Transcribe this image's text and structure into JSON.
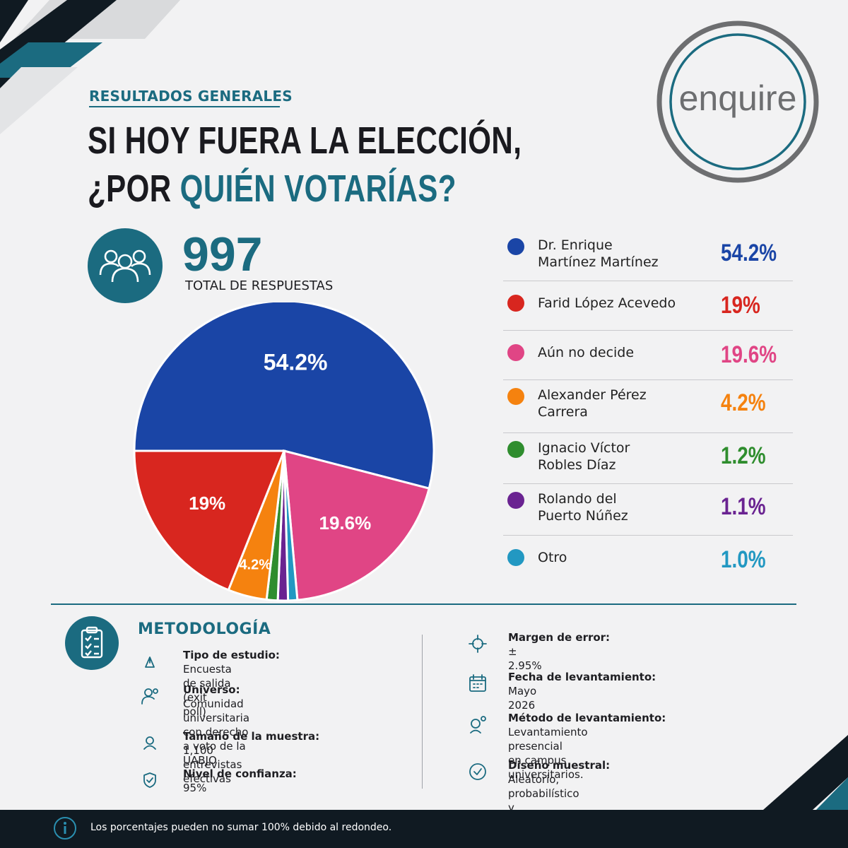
{
  "header": {
    "kicker": "RESULTADOS GENERALES",
    "title_line1": "SI HOY FUERA LA ELECCIÓN,",
    "title_line2_prefix": "¿POR ",
    "title_line2_highlight": "QUIÉN VOTARÍAS?"
  },
  "brand": {
    "logo_text": "enquire"
  },
  "total": {
    "value": "997",
    "label": "TOTAL DE RESPUESTAS"
  },
  "chart_data": {
    "type": "pie",
    "title": "SI HOY FUERA LA ELECCIÓN, ¿POR QUIÉN VOTARÍAS?",
    "slices": [
      {
        "name": "Dr. Enrique Martínez Martínez",
        "value": 54.2,
        "label": "54.2%",
        "color": "#1a45a6"
      },
      {
        "name": "Aún no decide",
        "value": 19.6,
        "label": "19.6%",
        "color": "#e04585"
      },
      {
        "name": "Otro",
        "value": 1.0,
        "label": "1.0%",
        "color": "#2298c2"
      },
      {
        "name": "Rolando del Puerto Núñez",
        "value": 1.1,
        "label": "1.1%",
        "color": "#6a2391"
      },
      {
        "name": "Ignacio Víctor Robles Díaz",
        "value": 1.2,
        "label": "1.2%",
        "color": "#2f8d2e"
      },
      {
        "name": "Alexander Pérez Carrera",
        "value": 4.2,
        "label": "4.2%",
        "color": "#f5820f"
      },
      {
        "name": "Farid López Acevedo",
        "value": 19,
        "label": "19%",
        "color": "#d8261f"
      }
    ],
    "legend_placement": "right"
  },
  "legend": [
    {
      "name": "Dr. Enrique\nMartínez Martínez",
      "value": "54.2%",
      "color": "#1a45a6"
    },
    {
      "name": "Farid López Acevedo",
      "value": "19%",
      "color": "#d8261f"
    },
    {
      "name": "Aún no decide",
      "value": "19.6%",
      "color": "#e04585"
    },
    {
      "name": "Alexander Pérez\nCarrera",
      "value": "4.2%",
      "color": "#f5820f"
    },
    {
      "name": "Ignacio Víctor\nRobles Díaz",
      "value": "1.2%",
      "color": "#2f8d2e"
    },
    {
      "name": "Rolando del\nPuerto Núñez",
      "value": "1.1%",
      "color": "#6a2391"
    },
    {
      "name": "Otro",
      "value": "1.0%",
      "color": "#2298c2"
    }
  ],
  "methodology": {
    "title": "METODOLOGÍA",
    "left": [
      {
        "icon": "pen-nib-icon",
        "label": "Tipo de estudio:",
        "value": "Encuesta de salida (exit poll)"
      },
      {
        "icon": "users-check-icon",
        "label": "Universo:",
        "value": "Comunidad universitaria\ncon derecho a voto de la UABJO"
      },
      {
        "icon": "user-circle-icon",
        "label": "Tamaño de la muestra:",
        "value": "1,100 entrevistas efectivas"
      },
      {
        "icon": "shield-check-icon",
        "label": "Nivel de confianza:",
        "value": "95%"
      }
    ],
    "right": [
      {
        "icon": "target-icon",
        "label": "Margen de error:",
        "value": "± 2.95%"
      },
      {
        "icon": "calendar-icon",
        "label": "Fecha de levantamiento:",
        "value": "Mayo 2026"
      },
      {
        "icon": "interview-icon",
        "label": "Método de levantamiento:",
        "value": "Levantamiento presencial\nen campus universitarios."
      },
      {
        "icon": "check-circle-icon",
        "label": "Diseño muestral:",
        "value": "Aleatorio, probabilístico\ny estratificado por campus"
      }
    ]
  },
  "footer": {
    "note": "Los porcentajes pueden no sumar 100% debido al redondeo."
  },
  "colors": {
    "accent": "#1b6b80",
    "dark": "#101a22"
  }
}
